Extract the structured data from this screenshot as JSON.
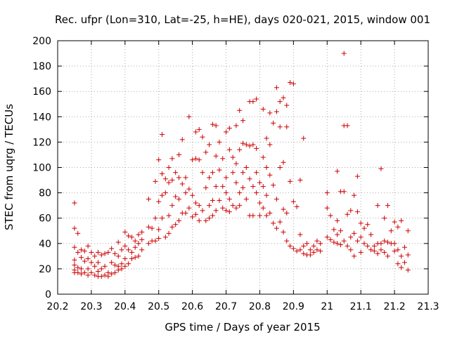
{
  "chart_data": {
    "type": "scatter",
    "title": "Rec. ufpr (Lon=310, Lat=-25, h=HE), days 020-021, 2015, window 001",
    "xlabel": "GPS time / Days of year 2015",
    "ylabel": "STEC from uqrg / TECUs",
    "xlim": [
      20.2,
      21.3
    ],
    "ylim": [
      0,
      200
    ],
    "xticks": [
      "20.2",
      "20.3",
      "20.4",
      "20.5",
      "20.6",
      "20.7",
      "20.8",
      "20.9",
      "21",
      "21.1",
      "21.2",
      "21.3"
    ],
    "yticks": [
      "0",
      "20",
      "40",
      "60",
      "80",
      "100",
      "120",
      "140",
      "160",
      "180",
      "200"
    ],
    "grid": true,
    "marker": "+",
    "color": "#cc0000",
    "series": [
      {
        "name": "STEC",
        "points": [
          [
            20.25,
            72
          ],
          [
            20.25,
            52
          ],
          [
            20.25,
            37
          ],
          [
            20.25,
            27
          ],
          [
            20.25,
            23
          ],
          [
            20.25,
            19
          ],
          [
            20.25,
            17
          ],
          [
            20.26,
            48
          ],
          [
            20.26,
            33
          ],
          [
            20.26,
            21
          ],
          [
            20.26,
            17
          ],
          [
            20.27,
            35
          ],
          [
            20.27,
            29
          ],
          [
            20.27,
            20
          ],
          [
            20.27,
            16
          ],
          [
            20.28,
            34
          ],
          [
            20.28,
            26
          ],
          [
            20.28,
            17
          ],
          [
            20.29,
            38
          ],
          [
            20.29,
            28
          ],
          [
            20.29,
            20
          ],
          [
            20.29,
            15
          ],
          [
            20.3,
            33
          ],
          [
            20.3,
            25
          ],
          [
            20.3,
            17
          ],
          [
            20.31,
            30
          ],
          [
            20.31,
            22
          ],
          [
            20.31,
            15
          ],
          [
            20.32,
            33
          ],
          [
            20.32,
            25
          ],
          [
            20.32,
            18
          ],
          [
            20.32,
            14
          ],
          [
            20.33,
            31
          ],
          [
            20.33,
            20
          ],
          [
            20.33,
            14
          ],
          [
            20.34,
            32
          ],
          [
            20.34,
            22
          ],
          [
            20.34,
            15
          ],
          [
            20.35,
            33
          ],
          [
            20.35,
            17
          ],
          [
            20.35,
            14
          ],
          [
            20.36,
            36
          ],
          [
            20.36,
            25
          ],
          [
            20.36,
            16
          ],
          [
            20.37,
            32
          ],
          [
            20.37,
            23
          ],
          [
            20.37,
            17
          ],
          [
            20.38,
            41
          ],
          [
            20.38,
            30
          ],
          [
            20.38,
            22
          ],
          [
            20.38,
            19
          ],
          [
            20.39,
            35
          ],
          [
            20.39,
            24
          ],
          [
            20.39,
            20
          ],
          [
            20.4,
            49
          ],
          [
            20.4,
            38
          ],
          [
            20.4,
            28
          ],
          [
            20.4,
            22
          ],
          [
            20.41,
            46
          ],
          [
            20.41,
            35
          ],
          [
            20.41,
            24
          ],
          [
            20.42,
            45
          ],
          [
            20.42,
            33
          ],
          [
            20.42,
            28
          ],
          [
            20.43,
            42
          ],
          [
            20.43,
            37
          ],
          [
            20.43,
            29
          ],
          [
            20.44,
            47
          ],
          [
            20.44,
            40
          ],
          [
            20.44,
            30
          ],
          [
            20.45,
            49
          ],
          [
            20.45,
            43
          ],
          [
            20.45,
            35
          ],
          [
            20.47,
            75
          ],
          [
            20.47,
            53
          ],
          [
            20.47,
            40
          ],
          [
            20.48,
            52
          ],
          [
            20.48,
            42
          ],
          [
            20.49,
            89
          ],
          [
            20.49,
            60
          ],
          [
            20.49,
            42
          ],
          [
            20.5,
            106
          ],
          [
            20.5,
            73
          ],
          [
            20.5,
            51
          ],
          [
            20.5,
            44
          ],
          [
            20.51,
            126
          ],
          [
            20.51,
            95
          ],
          [
            20.51,
            78
          ],
          [
            20.51,
            60
          ],
          [
            20.52,
            91
          ],
          [
            20.52,
            80
          ],
          [
            20.52,
            45
          ],
          [
            20.53,
            100
          ],
          [
            20.53,
            88
          ],
          [
            20.53,
            62
          ],
          [
            20.53,
            48
          ],
          [
            20.54,
            107
          ],
          [
            20.54,
            90
          ],
          [
            20.54,
            70
          ],
          [
            20.54,
            53
          ],
          [
            20.55,
            96
          ],
          [
            20.55,
            77
          ],
          [
            20.55,
            55
          ],
          [
            20.56,
            110
          ],
          [
            20.56,
            92
          ],
          [
            20.56,
            75
          ],
          [
            20.56,
            58
          ],
          [
            20.57,
            122
          ],
          [
            20.57,
            87
          ],
          [
            20.57,
            64
          ],
          [
            20.58,
            92
          ],
          [
            20.58,
            80
          ],
          [
            20.58,
            64
          ],
          [
            20.59,
            140
          ],
          [
            20.59,
            83
          ],
          [
            20.59,
            68
          ],
          [
            20.6,
            106
          ],
          [
            20.6,
            78
          ],
          [
            20.6,
            61
          ],
          [
            20.61,
            128
          ],
          [
            20.61,
            107
          ],
          [
            20.61,
            72
          ],
          [
            20.61,
            63
          ],
          [
            20.62,
            130
          ],
          [
            20.62,
            106
          ],
          [
            20.62,
            70
          ],
          [
            20.62,
            58
          ],
          [
            20.63,
            124
          ],
          [
            20.63,
            96
          ],
          [
            20.63,
            66
          ],
          [
            20.64,
            112
          ],
          [
            20.64,
            84
          ],
          [
            20.64,
            58
          ],
          [
            20.65,
            118
          ],
          [
            20.65,
            92
          ],
          [
            20.65,
            70
          ],
          [
            20.65,
            60
          ],
          [
            20.66,
            134
          ],
          [
            20.66,
            96
          ],
          [
            20.66,
            74
          ],
          [
            20.66,
            62
          ],
          [
            20.67,
            133
          ],
          [
            20.67,
            109
          ],
          [
            20.67,
            85
          ],
          [
            20.67,
            66
          ],
          [
            20.68,
            120
          ],
          [
            20.68,
            98
          ],
          [
            20.68,
            74
          ],
          [
            20.69,
            107
          ],
          [
            20.69,
            85
          ],
          [
            20.69,
            68
          ],
          [
            20.7,
            128
          ],
          [
            20.7,
            92
          ],
          [
            20.7,
            80
          ],
          [
            20.7,
            66
          ],
          [
            20.71,
            131
          ],
          [
            20.71,
            114
          ],
          [
            20.71,
            75
          ],
          [
            20.71,
            65
          ],
          [
            20.72,
            108
          ],
          [
            20.72,
            96
          ],
          [
            20.72,
            70
          ],
          [
            20.73,
            133
          ],
          [
            20.73,
            103
          ],
          [
            20.73,
            88
          ],
          [
            20.73,
            68
          ],
          [
            20.74,
            145
          ],
          [
            20.74,
            114
          ],
          [
            20.74,
            80
          ],
          [
            20.74,
            70
          ],
          [
            20.75,
            137
          ],
          [
            20.75,
            119
          ],
          [
            20.75,
            96
          ],
          [
            20.75,
            84
          ],
          [
            20.76,
            118
          ],
          [
            20.76,
            100
          ],
          [
            20.76,
            75
          ],
          [
            20.77,
            152
          ],
          [
            20.77,
            117
          ],
          [
            20.77,
            91
          ],
          [
            20.77,
            62
          ],
          [
            20.78,
            152
          ],
          [
            20.78,
            118
          ],
          [
            20.78,
            85
          ],
          [
            20.78,
            62
          ],
          [
            20.79,
            154
          ],
          [
            20.79,
            115
          ],
          [
            20.79,
            96
          ],
          [
            20.79,
            80
          ],
          [
            20.8,
            88
          ],
          [
            20.8,
            72
          ],
          [
            20.8,
            62
          ],
          [
            20.81,
            146
          ],
          [
            20.81,
            108
          ],
          [
            20.81,
            85
          ],
          [
            20.81,
            68
          ],
          [
            20.82,
            123
          ],
          [
            20.82,
            100
          ],
          [
            20.82,
            78
          ],
          [
            20.82,
            62
          ],
          [
            20.83,
            143
          ],
          [
            20.83,
            118
          ],
          [
            20.83,
            94
          ],
          [
            20.83,
            64
          ],
          [
            20.84,
            135
          ],
          [
            20.84,
            86
          ],
          [
            20.84,
            56
          ],
          [
            20.85,
            163
          ],
          [
            20.85,
            144
          ],
          [
            20.85,
            75
          ],
          [
            20.85,
            52
          ],
          [
            20.86,
            152
          ],
          [
            20.86,
            132
          ],
          [
            20.86,
            100
          ],
          [
            20.86,
            57
          ],
          [
            20.87,
            155
          ],
          [
            20.87,
            104
          ],
          [
            20.87,
            67
          ],
          [
            20.87,
            49
          ],
          [
            20.88,
            149
          ],
          [
            20.88,
            132
          ],
          [
            20.88,
            64
          ],
          [
            20.88,
            42
          ],
          [
            20.89,
            167
          ],
          [
            20.89,
            89
          ],
          [
            20.89,
            38
          ],
          [
            20.9,
            166
          ],
          [
            20.9,
            73
          ],
          [
            20.9,
            36
          ],
          [
            20.91,
            69
          ],
          [
            20.91,
            34
          ],
          [
            20.92,
            90
          ],
          [
            20.92,
            47
          ],
          [
            20.92,
            35
          ],
          [
            20.93,
            123
          ],
          [
            20.93,
            38
          ],
          [
            20.93,
            32
          ],
          [
            20.94,
            40
          ],
          [
            20.94,
            31
          ],
          [
            20.95,
            35
          ],
          [
            20.95,
            31
          ],
          [
            20.96,
            38
          ],
          [
            20.96,
            33
          ],
          [
            20.97,
            42
          ],
          [
            20.97,
            35
          ],
          [
            20.98,
            40
          ],
          [
            20.98,
            34
          ],
          [
            21.0,
            80
          ],
          [
            21.0,
            68
          ],
          [
            21.0,
            45
          ],
          [
            21.01,
            62
          ],
          [
            21.01,
            43
          ],
          [
            21.02,
            51
          ],
          [
            21.02,
            41
          ],
          [
            21.03,
            97
          ],
          [
            21.03,
            58
          ],
          [
            21.03,
            47
          ],
          [
            21.03,
            40
          ],
          [
            21.04,
            81
          ],
          [
            21.04,
            50
          ],
          [
            21.04,
            39
          ],
          [
            21.05,
            190
          ],
          [
            21.05,
            133
          ],
          [
            21.05,
            81
          ],
          [
            21.05,
            42
          ],
          [
            21.06,
            133
          ],
          [
            21.06,
            63
          ],
          [
            21.06,
            38
          ],
          [
            21.07,
            66
          ],
          [
            21.07,
            45
          ],
          [
            21.07,
            35
          ],
          [
            21.08,
            78
          ],
          [
            21.08,
            48
          ],
          [
            21.08,
            30
          ],
          [
            21.09,
            93
          ],
          [
            21.09,
            65
          ],
          [
            21.09,
            42
          ],
          [
            21.1,
            56
          ],
          [
            21.1,
            45
          ],
          [
            21.1,
            33
          ],
          [
            21.11,
            52
          ],
          [
            21.11,
            40
          ],
          [
            21.12,
            55
          ],
          [
            21.12,
            38
          ],
          [
            21.13,
            47
          ],
          [
            21.13,
            35
          ],
          [
            21.14,
            38
          ],
          [
            21.14,
            34
          ],
          [
            21.15,
            70
          ],
          [
            21.15,
            40
          ],
          [
            21.15,
            32
          ],
          [
            21.16,
            99
          ],
          [
            21.16,
            40
          ],
          [
            21.16,
            35
          ],
          [
            21.17,
            60
          ],
          [
            21.17,
            42
          ],
          [
            21.17,
            33
          ],
          [
            21.18,
            70
          ],
          [
            21.18,
            41
          ],
          [
            21.18,
            30
          ],
          [
            21.19,
            50
          ],
          [
            21.19,
            40
          ],
          [
            21.2,
            57
          ],
          [
            21.2,
            40
          ],
          [
            21.2,
            34
          ],
          [
            21.21,
            53
          ],
          [
            21.21,
            35
          ],
          [
            21.21,
            24
          ],
          [
            21.22,
            58
          ],
          [
            21.22,
            30
          ],
          [
            21.22,
            21
          ],
          [
            21.23,
            37
          ],
          [
            21.23,
            25
          ],
          [
            21.24,
            50
          ],
          [
            21.24,
            31
          ],
          [
            21.24,
            19
          ]
        ]
      }
    ]
  }
}
